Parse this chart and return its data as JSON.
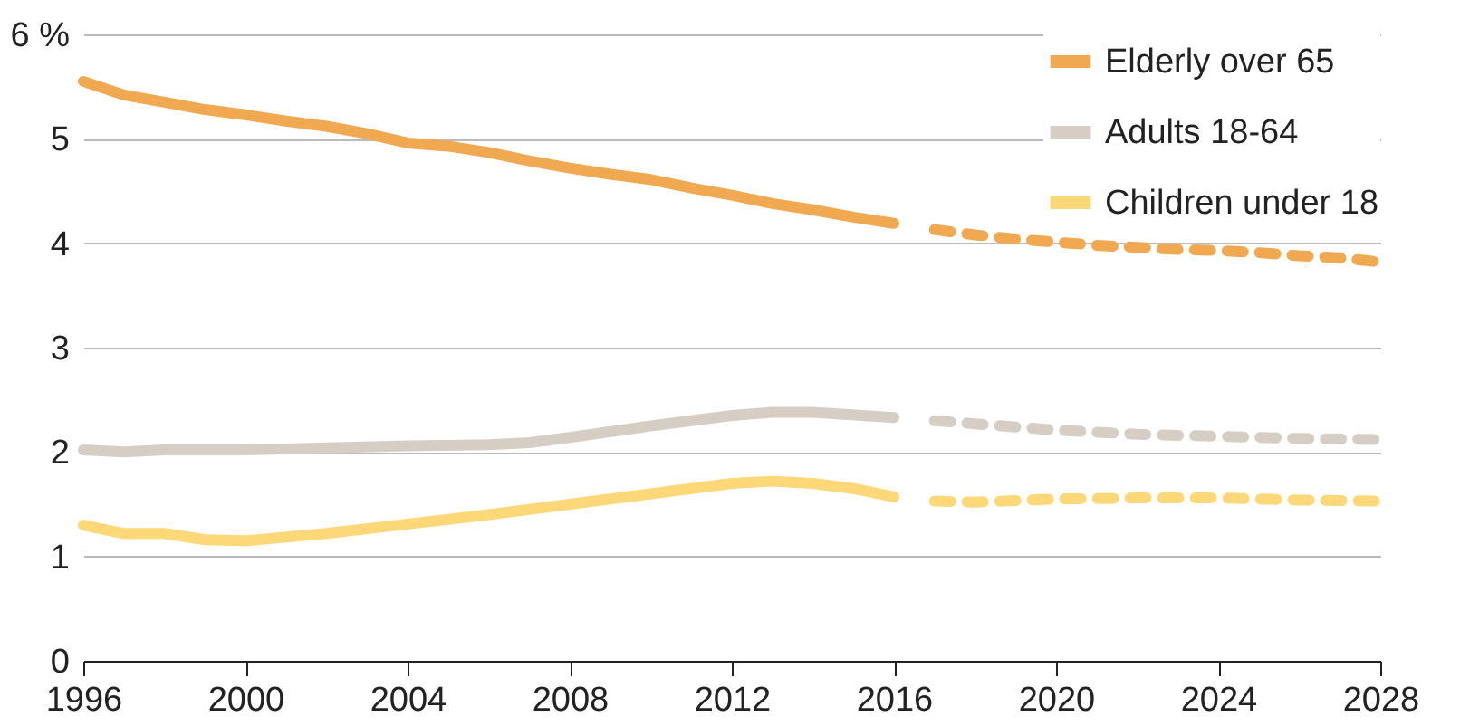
{
  "chart_data": {
    "type": "line",
    "xlim": [
      1996,
      2028
    ],
    "xticks": [
      1996,
      2000,
      2004,
      2008,
      2012,
      2016,
      2020,
      2024,
      2028
    ],
    "ylim": [
      0,
      6
    ],
    "yticks": [
      0,
      1,
      2,
      3,
      4,
      5,
      {
        "value": 6,
        "label": "6 %"
      }
    ],
    "grid": "y",
    "legend": "top right",
    "series": [
      {
        "name": "Elderly over 65",
        "color": "#f0a951",
        "line_style": "solid",
        "x": [
          1996,
          1997,
          1998,
          1999,
          2000,
          2001,
          2002,
          2003,
          2004,
          2005,
          2006,
          2007,
          2008,
          2009,
          2010,
          2011,
          2012,
          2013,
          2014,
          2015,
          2016
        ],
        "values": [
          5.55,
          5.42,
          5.35,
          5.28,
          5.23,
          5.17,
          5.12,
          5.05,
          4.96,
          4.93,
          4.87,
          4.79,
          4.72,
          4.66,
          4.61,
          4.53,
          4.46,
          4.38,
          4.32,
          4.25,
          4.19
        ]
      },
      {
        "name": "Adults 18-64",
        "color": "#d6cec4",
        "line_style": "solid",
        "x": [
          1996,
          1997,
          1998,
          2000,
          2002,
          2004,
          2006,
          2007,
          2008,
          2010,
          2012,
          2013,
          2014,
          2016
        ],
        "values": [
          2.02,
          2.0,
          2.02,
          2.02,
          2.04,
          2.06,
          2.07,
          2.09,
          2.14,
          2.25,
          2.35,
          2.38,
          2.38,
          2.33
        ]
      },
      {
        "name": "Children under 18",
        "color": "#fdd878",
        "line_style": "solid",
        "x": [
          1996,
          1997,
          1998,
          1999,
          2000,
          2002,
          2004,
          2006,
          2008,
          2010,
          2012,
          2013,
          2014,
          2015,
          2016
        ],
        "values": [
          1.3,
          1.22,
          1.22,
          1.16,
          1.15,
          1.22,
          1.31,
          1.4,
          1.5,
          1.6,
          1.7,
          1.72,
          1.7,
          1.65,
          1.57
        ]
      },
      {
        "color": "#f0a951",
        "line_style": "dashed",
        "x": [
          2017,
          2018,
          2019,
          2020,
          2021,
          2022,
          2023,
          2024,
          2025,
          2026,
          2027,
          2028
        ],
        "values": [
          4.13,
          4.08,
          4.04,
          4.01,
          3.98,
          3.96,
          3.94,
          3.93,
          3.91,
          3.88,
          3.86,
          3.82
        ]
      },
      {
        "color": "#d6cec4",
        "line_style": "dashed",
        "x": [
          2017,
          2018,
          2020,
          2022,
          2024,
          2026,
          2028
        ],
        "values": [
          2.3,
          2.27,
          2.21,
          2.17,
          2.15,
          2.13,
          2.12
        ]
      },
      {
        "color": "#fdd878",
        "line_style": "dashed",
        "x": [
          2017,
          2018,
          2020,
          2022,
          2024,
          2026,
          2028
        ],
        "values": [
          1.53,
          1.52,
          1.55,
          1.56,
          1.56,
          1.54,
          1.53
        ]
      }
    ]
  }
}
